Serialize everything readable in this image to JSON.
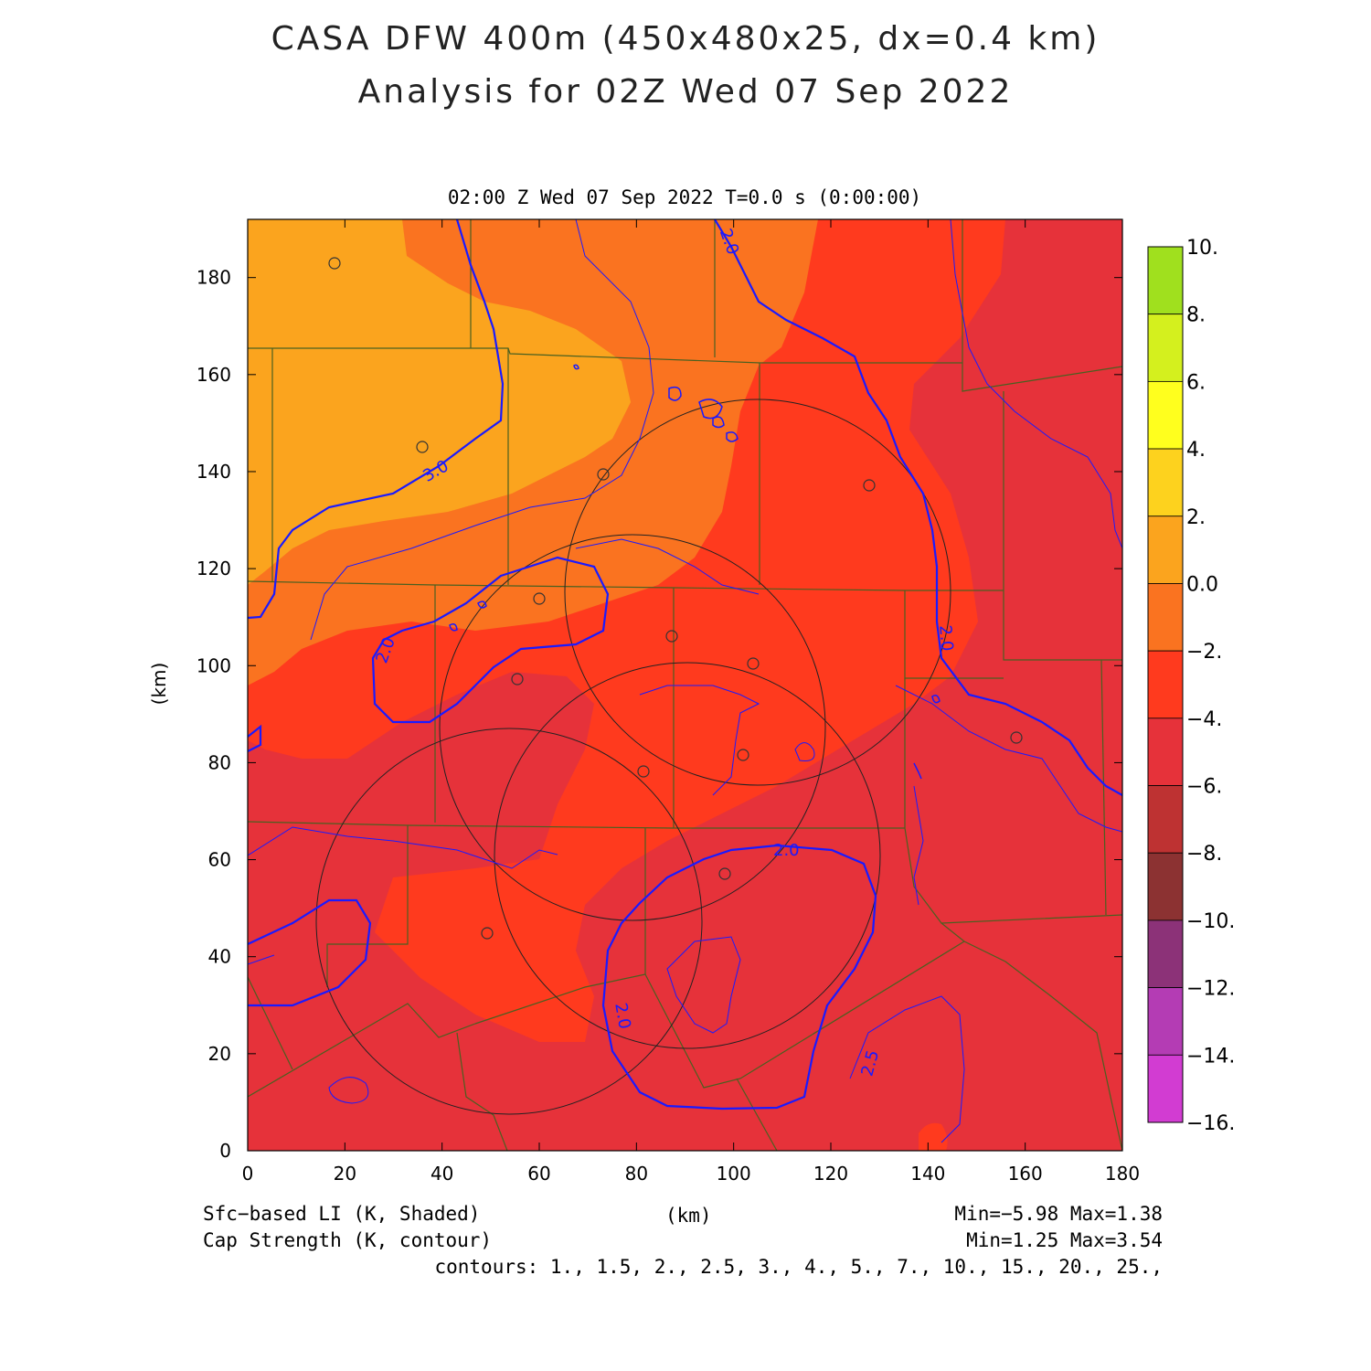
{
  "title_line1": "CASA DFW 400m (450x480x25, dx=0.4 km)",
  "title_line2": "Analysis for 02Z Wed 07 Sep 2022",
  "subtitle": "02:00 Z Wed 07 Sep 2022   T=0.0 s (0:00:00)",
  "axes": {
    "xlabel": "(km)",
    "ylabel": "(km)",
    "xlim": [
      0,
      180
    ],
    "ylim": [
      0,
      192
    ],
    "xticks": [
      "0",
      "20",
      "40",
      "60",
      "80",
      "100",
      "120",
      "140",
      "160",
      "180"
    ],
    "yticks": [
      "0",
      "20",
      "40",
      "60",
      "80",
      "100",
      "120",
      "140",
      "160",
      "180"
    ]
  },
  "colorbar": {
    "labels": [
      "10.",
      "8.",
      "6.",
      "4.",
      "2.",
      "0.0",
      "−2.",
      "−4.",
      "−6.",
      "−8.",
      "−10.",
      "−12.",
      "−14.",
      "−16."
    ],
    "colors": [
      "#a0e01e",
      "#d4f01e",
      "#ffff1e",
      "#fdd21e",
      "#fba41e",
      "#fa7320",
      "#ff3a1e",
      "#e6323a",
      "#be3232",
      "#8c3232",
      "#8c3278",
      "#b43cb4",
      "#d23cd2"
    ]
  },
  "contour_labels": [
    "3.0",
    "2.0",
    "2.0",
    "2.0",
    "2.0",
    "2.0",
    "2.5"
  ],
  "footer": {
    "field1": "Sfc−based LI (K, Shaded)",
    "field2": "Cap Strength (K, contour)",
    "unit": "(km)",
    "range1": "Min=−5.98 Max=1.38",
    "range2": "Min=1.25 Max=3.54",
    "contours": "contours: 1., 1.5, 2., 2.5, 3., 4., 5., 7., 10., 15., 20., 25.,"
  },
  "colors": {
    "li_orange_light": "#fba41e",
    "li_orange": "#fa7320",
    "li_red": "#ff3a1e",
    "li_darkred": "#e6323a",
    "contour": "#1a1aff",
    "borders": "#4a6020"
  }
}
